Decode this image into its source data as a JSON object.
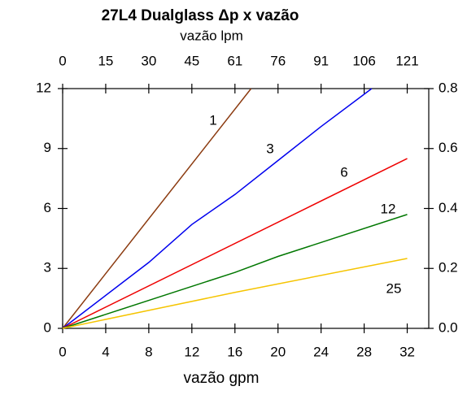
{
  "chart_data": {
    "type": "line",
    "title": "27L4 Dualglass Δp x vazão",
    "xlabel": "vazão gpm",
    "x2label": "vazão lpm",
    "xlim": [
      0,
      34
    ],
    "xticks": [
      0,
      4,
      8,
      12,
      16,
      20,
      24,
      28,
      32
    ],
    "x2lim": [
      0,
      128.7
    ],
    "x2ticks": [
      0,
      {
        "value": 15.14,
        "label": "15"
      },
      {
        "value": 30.28,
        "label": "30"
      },
      {
        "value": 45.42,
        "label": "45"
      },
      {
        "value": 60.57,
        "label": "61"
      },
      {
        "value": 75.71,
        "label": "76"
      },
      {
        "value": 90.85,
        "label": "91"
      },
      {
        "value": 105.99,
        "label": "106"
      },
      {
        "value": 121.13,
        "label": "121"
      }
    ],
    "ylim": [
      0,
      12
    ],
    "yticks": [
      0,
      3,
      6,
      9,
      12
    ],
    "y2lim": [
      0,
      0.8
    ],
    "y2ticks": [
      {
        "value": 0,
        "label": "0.0"
      },
      0.2,
      0.4,
      0.6,
      0.8
    ],
    "series": [
      {
        "name": "1",
        "color": "#8b3a0f",
        "x": [
          0,
          17.5
        ],
        "values": [
          0,
          12
        ]
      },
      {
        "name": "3",
        "color": "#0000ee",
        "x": [
          0,
          8,
          12,
          16,
          20,
          24,
          28.7
        ],
        "values": [
          0,
          3.3,
          5.2,
          6.7,
          8.4,
          10.1,
          12
        ]
      },
      {
        "name": "6",
        "color": "#ee0000",
        "x": [
          0,
          32
        ],
        "values": [
          0,
          8.5
        ]
      },
      {
        "name": "12",
        "color": "#007700",
        "x": [
          0,
          8,
          16,
          20,
          32
        ],
        "values": [
          0,
          1.4,
          2.8,
          3.6,
          5.7
        ]
      },
      {
        "name": "25",
        "color": "#f5c400",
        "x": [
          0,
          8,
          16,
          32
        ],
        "values": [
          0,
          0.9,
          1.8,
          3.5
        ]
      }
    ]
  }
}
